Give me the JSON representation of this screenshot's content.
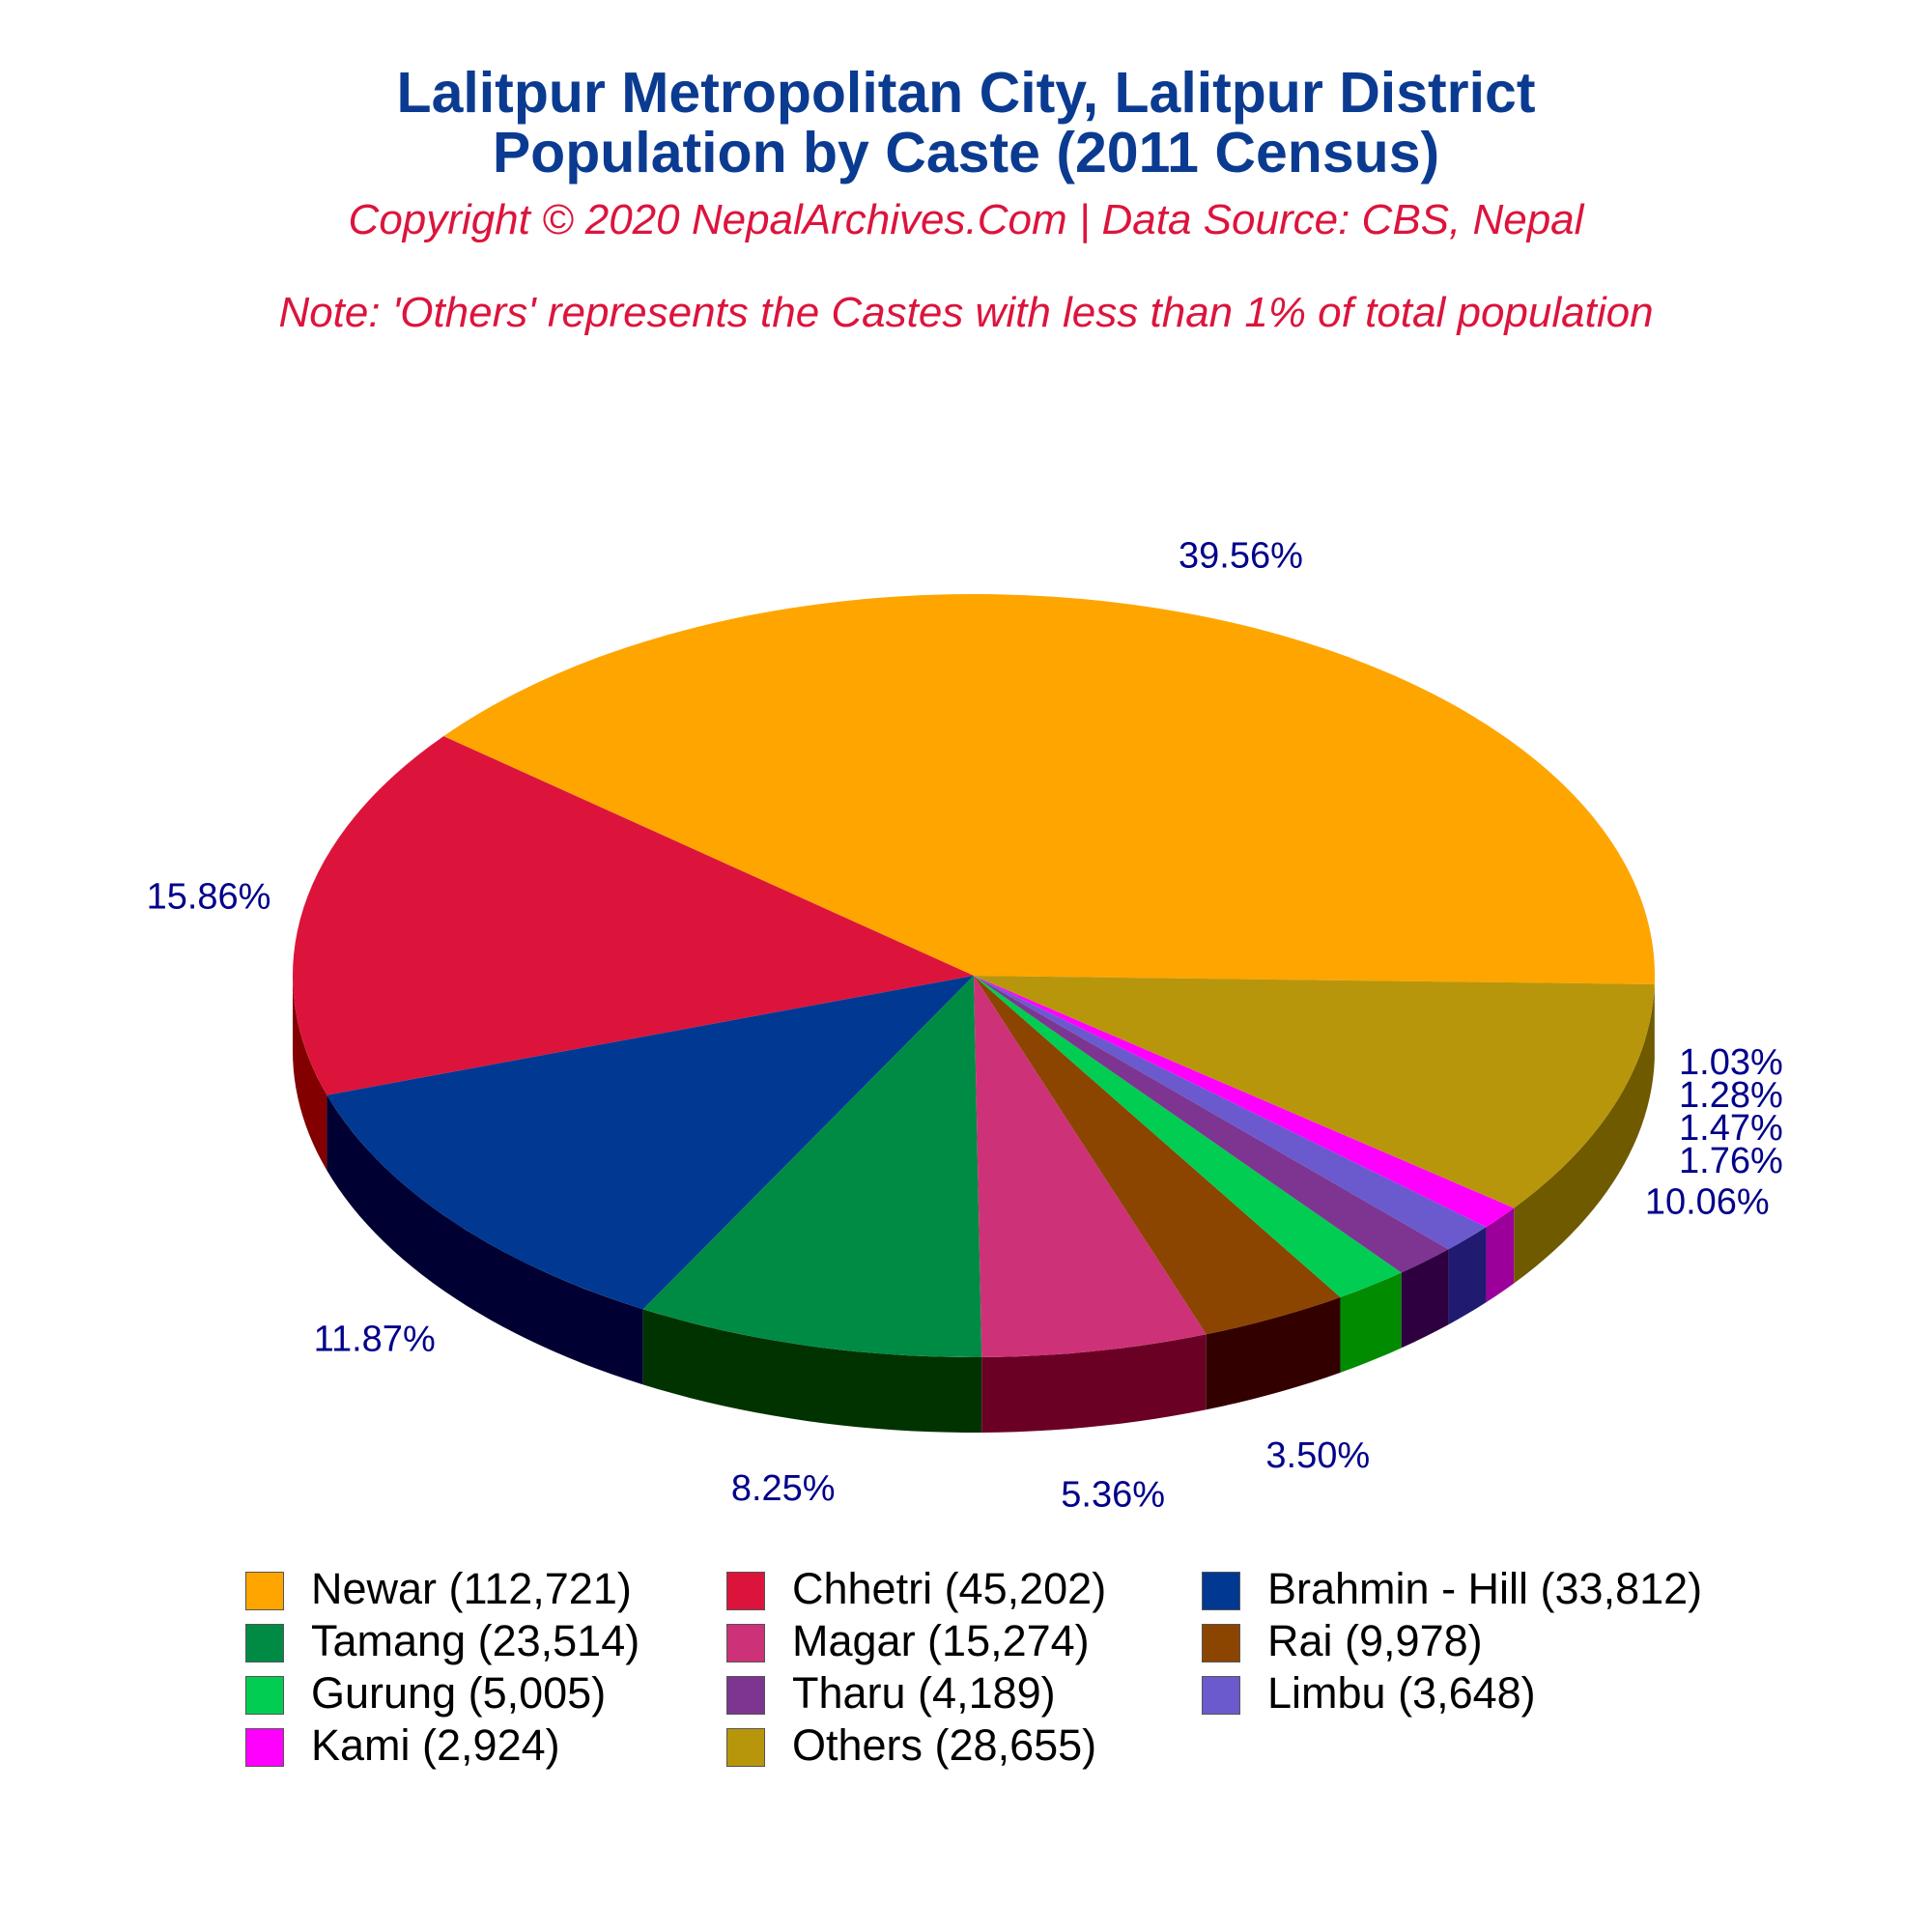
{
  "header": {
    "title_line1": "Lalitpur Metropolitan City, Lalitpur District",
    "title_line2": "Population by Caste (2011 Census)",
    "copyright": "Copyright © 2020 NepalArchives.Com | Data Source: CBS, Nepal",
    "note": "Note: 'Others' represents the Castes with less than 1% of total population"
  },
  "chart_data": {
    "type": "pie",
    "style": "3d",
    "slices": [
      {
        "name": "Newar",
        "value": 112721,
        "percent_label": "39.56%",
        "legend_label": "Newar (112,721)",
        "color": "#ffa500",
        "side_color": "#b87400"
      },
      {
        "name": "Chhetri",
        "value": 45202,
        "percent_label": "15.86%",
        "legend_label": "Chhetri (45,202)",
        "color": "#dc143c",
        "side_color": "#820000"
      },
      {
        "name": "Brahmin - Hill",
        "value": 33812,
        "percent_label": "11.87%",
        "legend_label": "Brahmin - Hill (33,812)",
        "color": "#003892",
        "side_color": "#000033"
      },
      {
        "name": "Tamang",
        "value": 23514,
        "percent_label": "8.25%",
        "legend_label": "Tamang (23,514)",
        "color": "#008b45",
        "side_color": "#003300"
      },
      {
        "name": "Magar",
        "value": 15274,
        "percent_label": "5.36%",
        "legend_label": "Magar (15,274)",
        "color": "#cd3278",
        "side_color": "#6a0024"
      },
      {
        "name": "Rai",
        "value": 9978,
        "percent_label": "3.50%",
        "legend_label": "Rai (9,978)",
        "color": "#8b4500",
        "side_color": "#330000"
      },
      {
        "name": "Gurung",
        "value": 5005,
        "percent_label": "1.76%",
        "legend_label": "Gurung (5,005)",
        "color": "#00cd52",
        "side_color": "#008b00"
      },
      {
        "name": "Tharu",
        "value": 4189,
        "percent_label": "1.47%",
        "legend_label": "Tharu (4,189)",
        "color": "#7d3591",
        "side_color": "#2e0040"
      },
      {
        "name": "Limbu",
        "value": 3648,
        "percent_label": "1.28%",
        "legend_label": "Limbu (3,648)",
        "color": "#6a5acd",
        "side_color": "#201a70"
      },
      {
        "name": "Kami",
        "value": 2924,
        "percent_label": "1.03%",
        "legend_label": "Kami (2,924)",
        "color": "#ff00ff",
        "side_color": "#9b009b"
      },
      {
        "name": "Others",
        "value": 28655,
        "percent_label": "10.06%",
        "legend_label": "Others (28,655)",
        "color": "#b8960c",
        "side_color": "#6f5a00"
      }
    ],
    "label_color": "#00008b",
    "legend_placement": "bottom",
    "legend_columns": 3
  }
}
